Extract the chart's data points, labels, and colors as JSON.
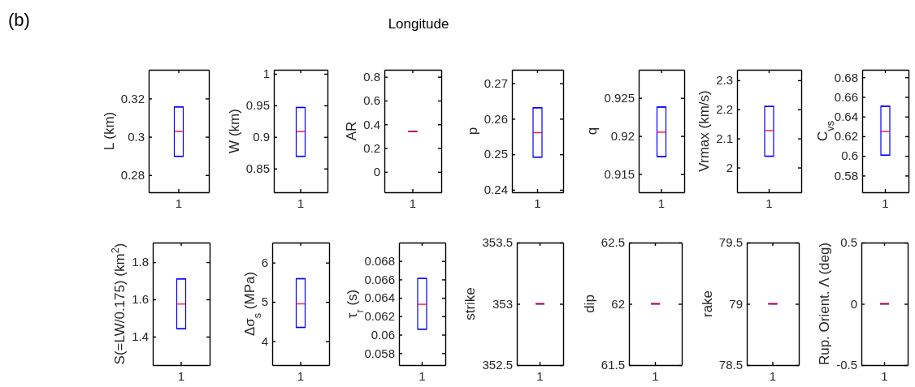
{
  "chart_data": [
    {
      "type": "other",
      "annotations": [
        "(b)",
        "Longitude"
      ]
    },
    {
      "type": "box",
      "ylabel": "L (km)",
      "categories": [
        "1"
      ],
      "ylim": [
        0.271,
        0.335
      ],
      "yticks": [
        0.28,
        0.3,
        0.32
      ],
      "series": [
        {
          "color": "#0000ff",
          "boxes": [
            {
              "low": 0.2898,
              "q1": 0.2898,
              "median": 0.3028,
              "q3": 0.3156,
              "high": 0.3156
            }
          ]
        }
      ]
    },
    {
      "type": "box",
      "ylabel": "W (km)",
      "categories": [
        "1"
      ],
      "ylim": [
        0.8124,
        1.0064
      ],
      "yticks": [
        0.85,
        0.9,
        0.95,
        1
      ],
      "series": [
        {
          "color": "#0000ff",
          "boxes": [
            {
              "low": 0.8694,
              "q1": 0.8694,
              "median": 0.9084,
              "q3": 0.9467,
              "high": 0.9467
            }
          ]
        }
      ]
    },
    {
      "type": "box",
      "ylabel": "AR",
      "categories": [
        "1"
      ],
      "ylim": [
        -0.172,
        0.859
      ],
      "yticks": [
        0,
        0.2,
        0.4,
        0.6,
        0.8
      ],
      "series": [
        {
          "color": "#0000ff",
          "boxes": [
            {
              "low": 0.339,
              "q1": 0.339,
              "median": 0.339,
              "q3": 0.339,
              "high": 0.339
            }
          ]
        }
      ]
    },
    {
      "type": "box",
      "ylabel": "p",
      "categories": [
        "1"
      ],
      "ylim": [
        0.2393,
        0.2738
      ],
      "yticks": [
        0.24,
        0.25,
        0.26,
        0.27
      ],
      "series": [
        {
          "color": "#0000ff",
          "boxes": [
            {
              "low": 0.2492,
              "q1": 0.2492,
              "median": 0.2561,
              "q3": 0.2631,
              "high": 0.2631
            }
          ]
        }
      ]
    },
    {
      "type": "box",
      "ylabel": "q",
      "categories": [
        "1"
      ],
      "ylim": [
        0.9126,
        0.9287
      ],
      "yticks": [
        0.915,
        0.92,
        0.925
      ],
      "series": [
        {
          "color": "#0000ff",
          "boxes": [
            {
              "low": 0.9173,
              "q1": 0.9173,
              "median": 0.9205,
              "q3": 0.9238,
              "high": 0.9238
            }
          ]
        }
      ]
    },
    {
      "type": "box",
      "ylabel": "Vrmax (km/s)",
      "categories": [
        "1"
      ],
      "ylim": [
        1.915,
        2.336
      ],
      "yticks": [
        2,
        2.1,
        2.2,
        2.3
      ],
      "series": [
        {
          "color": "#0000ff",
          "boxes": [
            {
              "low": 2.039,
              "q1": 2.039,
              "median": 2.127,
              "q3": 2.21,
              "high": 2.21
            }
          ]
        }
      ]
    },
    {
      "type": "box",
      "ylabel": "C$_{vs}$",
      "categories": [
        "1"
      ],
      "ylim": [
        0.563,
        0.6876
      ],
      "yticks": [
        0.58,
        0.6,
        0.62,
        0.64,
        0.66,
        0.68
      ],
      "series": [
        {
          "color": "#0000ff",
          "boxes": [
            {
              "low": 0.6007,
              "q1": 0.6007,
              "median": 0.6248,
              "q3": 0.6505,
              "high": 0.6505
            }
          ]
        }
      ]
    },
    {
      "type": "box",
      "ylabel": "S(=LW/0.175) (km$^{2}$)",
      "categories": [
        "1"
      ],
      "ylim": [
        1.247,
        1.905
      ],
      "yticks": [
        1.4,
        1.6,
        1.8
      ],
      "series": [
        {
          "color": "#0000ff",
          "boxes": [
            {
              "low": 1.442,
              "q1": 1.442,
              "median": 1.575,
              "q3": 1.71,
              "high": 1.71
            }
          ]
        }
      ]
    },
    {
      "type": "box",
      "ylabel": "Δσ$_{s}$ (MPa)",
      "categories": [
        "1"
      ],
      "ylim": [
        3.39,
        6.51
      ],
      "yticks": [
        4,
        5,
        6
      ],
      "series": [
        {
          "color": "#0000ff",
          "boxes": [
            {
              "low": 4.35,
              "q1": 4.35,
              "median": 4.95,
              "q3": 5.59,
              "high": 5.59
            }
          ]
        }
      ]
    },
    {
      "type": "box",
      "ylabel": "τ$_{r}$ (s)",
      "categories": [
        "1"
      ],
      "ylim": [
        0.0567,
        0.07
      ],
      "yticks": [
        0.058,
        0.06,
        0.062,
        0.064,
        0.066,
        0.068
      ],
      "series": [
        {
          "color": "#0000ff",
          "boxes": [
            {
              "low": 0.0606,
              "q1": 0.0606,
              "median": 0.0633,
              "q3": 0.0661,
              "high": 0.0661
            }
          ]
        }
      ]
    },
    {
      "type": "box",
      "ylabel": "strike",
      "categories": [
        "1"
      ],
      "ylim": [
        352.5,
        353.5
      ],
      "yticks": [
        352.5,
        353,
        353.5
      ],
      "series": [
        {
          "color": "#0000ff",
          "boxes": [
            {
              "low": 353,
              "q1": 353,
              "median": 353,
              "q3": 353,
              "high": 353
            }
          ]
        }
      ]
    },
    {
      "type": "box",
      "ylabel": "dip",
      "categories": [
        "1"
      ],
      "ylim": [
        61.5,
        62.5
      ],
      "yticks": [
        61.5,
        62,
        62.5
      ],
      "series": [
        {
          "color": "#0000ff",
          "boxes": [
            {
              "low": 62,
              "q1": 62,
              "median": 62,
              "q3": 62,
              "high": 62
            }
          ]
        }
      ]
    },
    {
      "type": "box",
      "ylabel": "rake",
      "categories": [
        "1"
      ],
      "ylim": [
        78.5,
        79.5
      ],
      "yticks": [
        78.5,
        79,
        79.5
      ],
      "series": [
        {
          "color": "#0000ff",
          "boxes": [
            {
              "low": 79,
              "q1": 79,
              "median": 79,
              "q3": 79,
              "high": 79
            }
          ]
        }
      ]
    },
    {
      "type": "box",
      "ylabel": "Rup. Orient. Λ (deg)",
      "categories": [
        "1"
      ],
      "ylim": [
        -0.5,
        0.5
      ],
      "yticks": [
        -0.5,
        0,
        0.5
      ],
      "series": [
        {
          "color": "#0000ff",
          "boxes": [
            {
              "low": 0,
              "q1": 0,
              "median": 0,
              "q3": 0,
              "high": 0
            }
          ]
        }
      ]
    }
  ]
}
